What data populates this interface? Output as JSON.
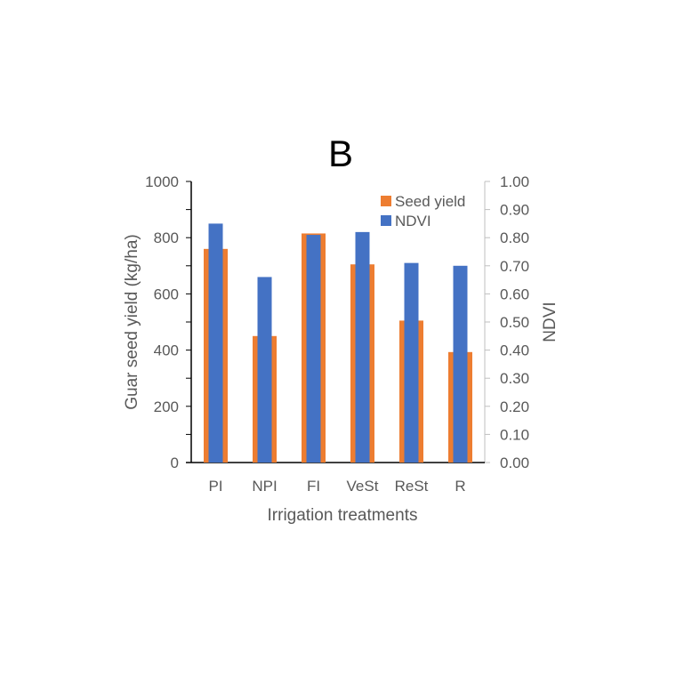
{
  "chart_data": {
    "type": "bar",
    "title": "B",
    "categories": [
      "PI",
      "NPI",
      "FI",
      "VeSt",
      "ReSt",
      "R"
    ],
    "xlabel": "Irrigation treatments",
    "ylabel": "Guar seed yield (kg/ha)",
    "y2label": "NDVI",
    "ylim": [
      0,
      1000
    ],
    "y2lim": [
      0,
      1
    ],
    "yticks": [
      "0",
      "200",
      "400",
      "600",
      "800",
      "1000"
    ],
    "y2ticks": [
      "0.00",
      "0.10",
      "0.20",
      "0.30",
      "0.40",
      "0.50",
      "0.60",
      "0.70",
      "0.80",
      "0.90",
      "1.00"
    ],
    "legend": "top-right",
    "grid": false,
    "series": [
      {
        "name": "Seed yield",
        "axis": "left",
        "color": "#ED7D31",
        "values": [
          760,
          450,
          815,
          705,
          505,
          393
        ]
      },
      {
        "name": "NDVI",
        "axis": "right",
        "color": "#4472C4",
        "values": [
          0.85,
          0.66,
          0.81,
          0.82,
          0.71,
          0.7
        ]
      }
    ]
  }
}
